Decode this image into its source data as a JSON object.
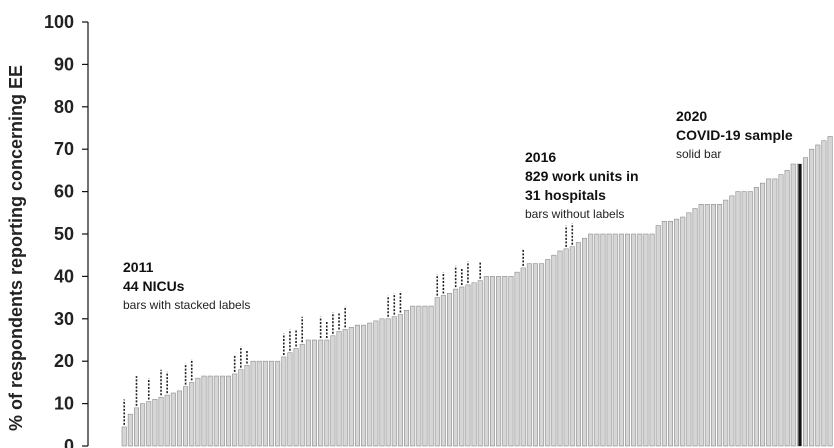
{
  "chart_data": {
    "type": "bar",
    "ylabel": "% of respondents reporting concerning EE",
    "xlabel": "",
    "ylim": [
      0,
      100
    ],
    "yticks": [
      0,
      10,
      20,
      30,
      40,
      50,
      60,
      70,
      80,
      90,
      100
    ],
    "grid": false,
    "colors": {
      "bar_fill": "#d6d6d6",
      "bar_stroke": "#8c8c8c",
      "solid_bar": "#111111",
      "label_marks": "#222222",
      "axis": "#111111"
    },
    "annotations": [
      {
        "lines": [
          "2011",
          "44 NICUs"
        ],
        "sub": "bars with stacked labels"
      },
      {
        "lines": [
          "2016",
          "829 work units in",
          "31 hospitals"
        ],
        "sub": "bars without labels"
      },
      {
        "lines": [
          "2020",
          "COVID-19 sample"
        ],
        "sub": "solid bar"
      }
    ],
    "series": [
      {
        "values": [
          4.5,
          7.5,
          9,
          10,
          10.5,
          11,
          11.5,
          12,
          12.5,
          13,
          14,
          15,
          16,
          16.5,
          16.5,
          16.5,
          16.5,
          16.5,
          17,
          18,
          19,
          20,
          20,
          20,
          20,
          20,
          21,
          22,
          23,
          24,
          25,
          25,
          25,
          25,
          26,
          27,
          27.5,
          28,
          28.5,
          28.5,
          29,
          29.5,
          30,
          30,
          30.5,
          31,
          32,
          33,
          33,
          33,
          33,
          35,
          35.5,
          36,
          37,
          37.5,
          38,
          38.5,
          39,
          40,
          40,
          40,
          40,
          40,
          41,
          42,
          43,
          43,
          43,
          44,
          45,
          46,
          46.5,
          47,
          48,
          49,
          50,
          50,
          50,
          50,
          50,
          50,
          50,
          50,
          50,
          50,
          50,
          52,
          53,
          53,
          53.5,
          54,
          55,
          56,
          57,
          57,
          57,
          57,
          58,
          59,
          60,
          60,
          60,
          61,
          62,
          63,
          63,
          64,
          65,
          66.5,
          66.5,
          68,
          70,
          71,
          72,
          73
        ],
        "stacked_label_heights": [
          6,
          0,
          7,
          0,
          5,
          0,
          6,
          5,
          0,
          0,
          5,
          5,
          0,
          0,
          0,
          0,
          0,
          0,
          4,
          5,
          3,
          0,
          0,
          0,
          0,
          0,
          5,
          5,
          4,
          6,
          0,
          0,
          5,
          4,
          5,
          4,
          5,
          0,
          0,
          0,
          0,
          0,
          0,
          5,
          5,
          5,
          0,
          0,
          0,
          0,
          0,
          5,
          5,
          0,
          5,
          4,
          5,
          0,
          4,
          0,
          0,
          0,
          0,
          0,
          0,
          4,
          0,
          0,
          0,
          0,
          0,
          0,
          5,
          5,
          0,
          0,
          0,
          0,
          0,
          0,
          0,
          0,
          0,
          0,
          0,
          0,
          0,
          0,
          0,
          0,
          0,
          0,
          0,
          0,
          0,
          0,
          0,
          0,
          0,
          0,
          0,
          0,
          0,
          0,
          0,
          0,
          0,
          0,
          0,
          0,
          0,
          0,
          0,
          0,
          0,
          0,
          0
        ],
        "solid_bar_index": 110,
        "solid_bar_value": 66.5
      }
    ]
  }
}
